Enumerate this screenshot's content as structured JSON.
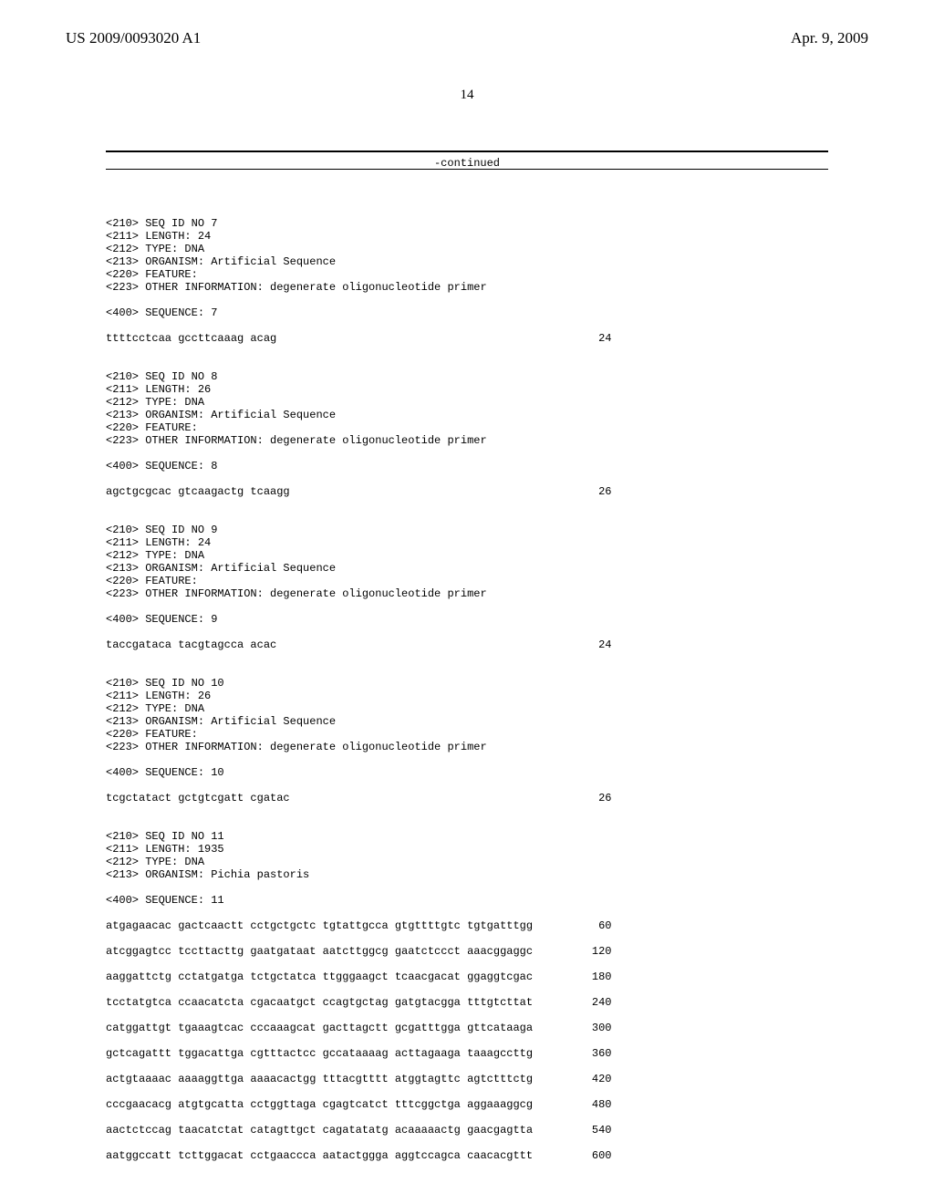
{
  "header": {
    "left": "US 2009/0093020 A1",
    "right": "Apr. 9, 2009"
  },
  "page_number": "14",
  "continued": "-continued",
  "entries": [
    {
      "meta": [
        "<210> SEQ ID NO 7",
        "<211> LENGTH: 24",
        "<212> TYPE: DNA",
        "<213> ORGANISM: Artificial Sequence",
        "<220> FEATURE:",
        "<223> OTHER INFORMATION: degenerate oligonucleotide primer"
      ],
      "seq_label": "<400> SEQUENCE: 7",
      "data": [
        {
          "seq": "ttttcctcaa gccttcaaag acag",
          "num": "24"
        }
      ]
    },
    {
      "meta": [
        "<210> SEQ ID NO 8",
        "<211> LENGTH: 26",
        "<212> TYPE: DNA",
        "<213> ORGANISM: Artificial Sequence",
        "<220> FEATURE:",
        "<223> OTHER INFORMATION: degenerate oligonucleotide primer"
      ],
      "seq_label": "<400> SEQUENCE: 8",
      "data": [
        {
          "seq": "agctgcgcac gtcaagactg tcaagg",
          "num": "26"
        }
      ]
    },
    {
      "meta": [
        "<210> SEQ ID NO 9",
        "<211> LENGTH: 24",
        "<212> TYPE: DNA",
        "<213> ORGANISM: Artificial Sequence",
        "<220> FEATURE:",
        "<223> OTHER INFORMATION: degenerate oligonucleotide primer"
      ],
      "seq_label": "<400> SEQUENCE: 9",
      "data": [
        {
          "seq": "taccgataca tacgtagcca acac",
          "num": "24"
        }
      ]
    },
    {
      "meta": [
        "<210> SEQ ID NO 10",
        "<211> LENGTH: 26",
        "<212> TYPE: DNA",
        "<213> ORGANISM: Artificial Sequence",
        "<220> FEATURE:",
        "<223> OTHER INFORMATION: degenerate oligonucleotide primer"
      ],
      "seq_label": "<400> SEQUENCE: 10",
      "data": [
        {
          "seq": "tcgctatact gctgtcgatt cgatac",
          "num": "26"
        }
      ]
    },
    {
      "meta": [
        "<210> SEQ ID NO 11",
        "<211> LENGTH: 1935",
        "<212> TYPE: DNA",
        "<213> ORGANISM: Pichia pastoris"
      ],
      "seq_label": "<400> SEQUENCE: 11",
      "data": [
        {
          "seq": "atgagaacac gactcaactt cctgctgctc tgtattgcca gtgttttgtc tgtgatttgg",
          "num": "60"
        },
        {
          "seq": "atcggagtcc tccttacttg gaatgataat aatcttggcg gaatctccct aaacggaggc",
          "num": "120"
        },
        {
          "seq": "aaggattctg cctatgatga tctgctatca ttgggaagct tcaacgacat ggaggtcgac",
          "num": "180"
        },
        {
          "seq": "tcctatgtca ccaacatcta cgacaatgct ccagtgctag gatgtacgga tttgtcttat",
          "num": "240"
        },
        {
          "seq": "catggattgt tgaaagtcac cccaaagcat gacttagctt gcgatttgga gttcataaga",
          "num": "300"
        },
        {
          "seq": "gctcagattt tggacattga cgtttactcc gccataaaag acttagaaga taaagccttg",
          "num": "360"
        },
        {
          "seq": "actgtaaaac aaaaggttga aaaacactgg tttacgtttt atggtagttc agtctttctg",
          "num": "420"
        },
        {
          "seq": "cccgaacacg atgtgcatta cctggttaga cgagtcatct tttcggctga aggaaaggcg",
          "num": "480"
        },
        {
          "seq": "aactctccag taacatctat catagttgct cagatatatg acaaaaactg gaacgagtta",
          "num": "540"
        },
        {
          "seq": "aatggccatt tcttggacat cctgaaccca aatactggga aggtccagca caacacgttt",
          "num": "600"
        }
      ]
    }
  ]
}
